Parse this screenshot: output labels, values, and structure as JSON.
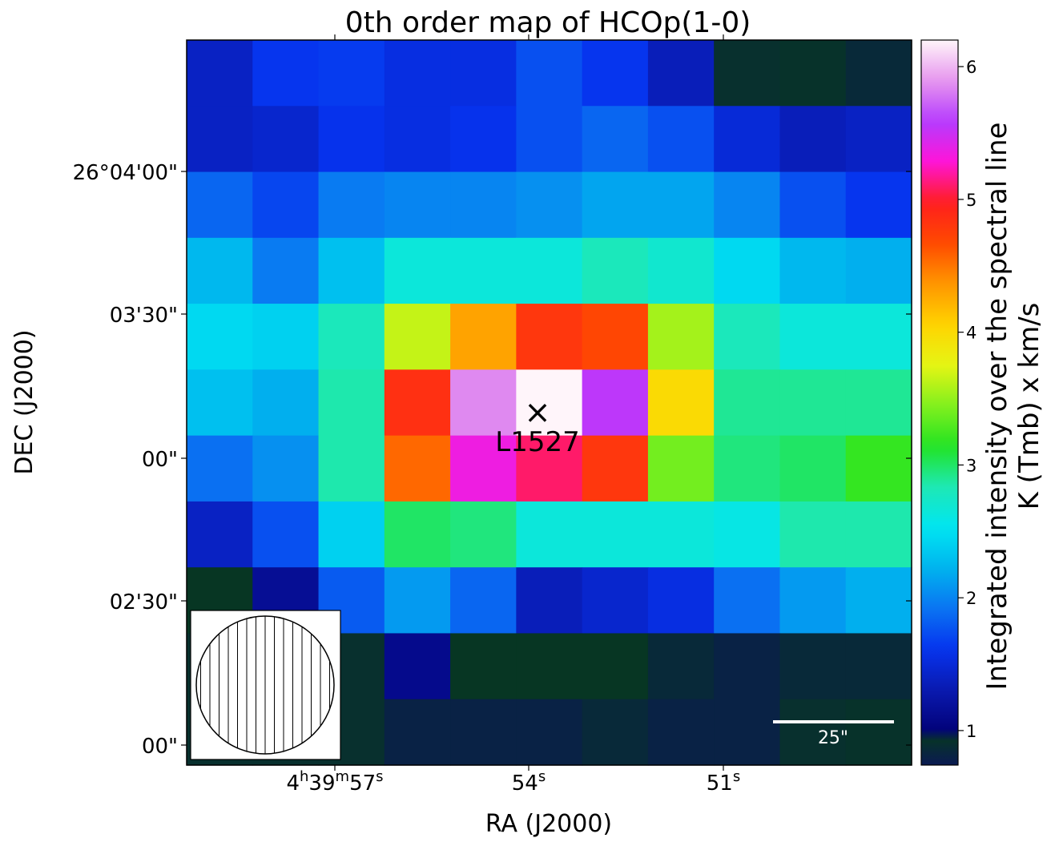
{
  "chart_data": {
    "type": "heatmap",
    "title": "0th order map of HCOp(1-0)",
    "xlabel": "RA (J2000)",
    "ylabel": "DEC (J2000)",
    "x_ticks": [
      {
        "h": "4",
        "m": "39",
        "s": "57"
      },
      {
        "s": "54"
      },
      {
        "s": "51"
      }
    ],
    "y_ticks": [
      "26°04'00\"",
      "03'30\"",
      "00\"",
      "02'30\"",
      "00\""
    ],
    "colorbar": {
      "label_line1": "Integrated intensity over the spectral line",
      "label_line2": "K (Tmb) x km/s",
      "range": [
        0.74,
        6.2
      ],
      "ticks": [
        "1",
        "2",
        "3",
        "4",
        "5",
        "6"
      ],
      "colormap": [
        "#02027a",
        "#0a1ab0",
        "#0633ee",
        "#0a74f2",
        "#00b4ee",
        "#00e6f2",
        "#1ee8b4",
        "#22e322",
        "#82f01e",
        "#e6f514",
        "#ffd300",
        "#ff9600",
        "#ff4a00",
        "#ff1e1e",
        "#ff14d8",
        "#b43cff",
        "#e696ee",
        "#fff5fa"
      ],
      "dark_bottom": [
        "#0a1a52",
        "#063d18",
        "#054a1a"
      ]
    },
    "grid_rows": 11,
    "grid_cols": 11,
    "values": [
      [
        1.4,
        1.62,
        1.65,
        1.55,
        1.55,
        1.75,
        1.62,
        1.35,
        0.9,
        0.92,
        0.85
      ],
      [
        1.4,
        1.45,
        1.6,
        1.55,
        1.6,
        1.75,
        1.85,
        1.75,
        1.5,
        1.35,
        1.4
      ],
      [
        1.85,
        1.7,
        1.95,
        2.0,
        2.0,
        2.05,
        2.15,
        2.15,
        2.0,
        1.75,
        1.62
      ],
      [
        2.25,
        1.95,
        2.3,
        2.65,
        2.65,
        2.65,
        2.8,
        2.7,
        2.45,
        2.25,
        2.2
      ],
      [
        2.45,
        2.4,
        2.8,
        3.65,
        4.3,
        4.8,
        4.7,
        3.55,
        2.8,
        2.65,
        2.65
      ],
      [
        2.3,
        2.2,
        2.85,
        4.85,
        5.85,
        6.2,
        5.55,
        4.0,
        2.9,
        2.9,
        2.9
      ],
      [
        1.9,
        2.05,
        2.85,
        4.55,
        5.35,
        5.1,
        4.8,
        3.4,
        2.95,
        3.0,
        3.2
      ],
      [
        1.4,
        1.75,
        2.4,
        3.0,
        2.95,
        2.65,
        2.65,
        2.65,
        2.6,
        2.85,
        2.85
      ],
      [
        0.95,
        1.15,
        1.8,
        2.1,
        1.85,
        1.35,
        1.45,
        1.55,
        1.9,
        2.1,
        2.2
      ],
      [
        0.9,
        0.9,
        0.9,
        1.1,
        0.95,
        0.95,
        0.95,
        0.85,
        0.8,
        0.85,
        0.85
      ],
      [
        0.9,
        0.9,
        0.9,
        0.8,
        0.8,
        0.8,
        0.85,
        0.8,
        0.8,
        0.9,
        0.92
      ]
    ],
    "source": {
      "name": "L1527",
      "marker": "×"
    },
    "scalebar": {
      "label": "25\""
    },
    "beam": "hatched-circle"
  }
}
